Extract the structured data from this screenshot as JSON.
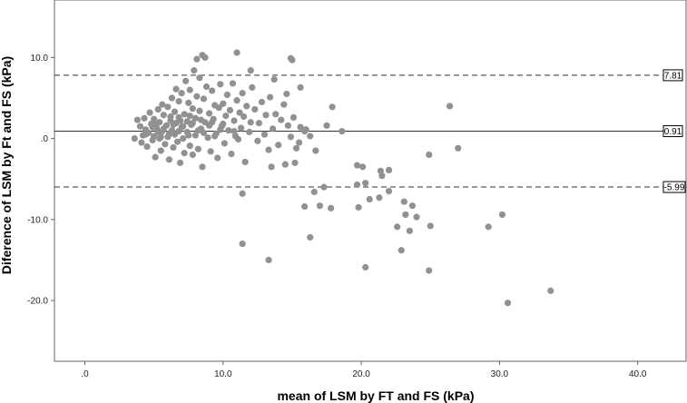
{
  "chart_data": {
    "type": "scatter",
    "title": "",
    "xlabel": "mean of LSM by FT and FS (kPa)",
    "ylabel": "Diference of LSM by Ft and FS (kPa)",
    "xlim": [
      -2.2,
      43.5
    ],
    "ylim": [
      -27.5,
      17.1
    ],
    "x_ticks": [
      0,
      10,
      20,
      30,
      40
    ],
    "x_tick_labels": [
      ".0",
      "10.0",
      "20.0",
      "30.0",
      "40.0"
    ],
    "y_ticks": [
      10,
      0,
      -10,
      -20
    ],
    "y_tick_labels": [
      "10.0",
      ".0",
      "-10.0",
      "-20.0"
    ],
    "grid": false,
    "point_color": "#919191",
    "reference_lines": [
      {
        "value": 7.81,
        "label": "7.81",
        "style": "dashed"
      },
      {
        "value": 0.91,
        "label": "0.91",
        "style": "solid"
      },
      {
        "value": -5.99,
        "label": "-5.99",
        "style": "dashed"
      }
    ],
    "points": [
      [
        3.6,
        0.0
      ],
      [
        3.8,
        2.3
      ],
      [
        4.0,
        1.5
      ],
      [
        4.1,
        -0.5
      ],
      [
        4.2,
        0.4
      ],
      [
        4.3,
        2.5
      ],
      [
        4.4,
        1.1
      ],
      [
        4.5,
        -1.0
      ],
      [
        4.6,
        0.7
      ],
      [
        4.7,
        3.2
      ],
      [
        4.8,
        1.8
      ],
      [
        4.9,
        -0.2
      ],
      [
        5.0,
        2.4
      ],
      [
        5.0,
        0.3
      ],
      [
        5.1,
        -2.3
      ],
      [
        5.2,
        1.3
      ],
      [
        5.3,
        3.6
      ],
      [
        5.4,
        0.0
      ],
      [
        5.4,
        2.0
      ],
      [
        5.5,
        -1.5
      ],
      [
        5.6,
        4.2
      ],
      [
        5.6,
        0.9
      ],
      [
        5.7,
        2.9
      ],
      [
        5.8,
        -0.7
      ],
      [
        5.9,
        1.6
      ],
      [
        6.0,
        3.9
      ],
      [
        6.0,
        0.2
      ],
      [
        6.1,
        -2.6
      ],
      [
        6.2,
        2.2
      ],
      [
        6.3,
        5.0
      ],
      [
        6.3,
        1.0
      ],
      [
        6.4,
        -1.1
      ],
      [
        6.5,
        3.3
      ],
      [
        6.5,
        0.5
      ],
      [
        6.6,
        6.1
      ],
      [
        6.6,
        1.9
      ],
      [
        6.7,
        -0.4
      ],
      [
        6.8,
        4.6
      ],
      [
        6.8,
        2.6
      ],
      [
        6.9,
        -3.0
      ],
      [
        7.0,
        1.4
      ],
      [
        7.0,
        5.6
      ],
      [
        7.1,
        0.0
      ],
      [
        7.2,
        3.0
      ],
      [
        7.2,
        -1.8
      ],
      [
        7.3,
        7.1
      ],
      [
        7.4,
        2.1
      ],
      [
        7.4,
        0.8
      ],
      [
        7.5,
        4.4
      ],
      [
        7.6,
        -0.9
      ],
      [
        7.6,
        6.0
      ],
      [
        7.7,
        1.7
      ],
      [
        7.8,
        3.7
      ],
      [
        7.8,
        -2.0
      ],
      [
        7.9,
        8.4
      ],
      [
        8.0,
        2.5
      ],
      [
        8.0,
        0.4
      ],
      [
        8.1,
        5.2
      ],
      [
        8.2,
        -1.3
      ],
      [
        8.3,
        3.4
      ],
      [
        8.3,
        7.5
      ],
      [
        8.4,
        1.2
      ],
      [
        8.5,
        -3.5
      ],
      [
        8.6,
        4.9
      ],
      [
        8.7,
        2.0
      ],
      [
        8.8,
        6.4
      ],
      [
        8.9,
        0.1
      ],
      [
        9.0,
        3.1
      ],
      [
        9.1,
        -1.6
      ],
      [
        9.2,
        5.9
      ],
      [
        9.3,
        2.4
      ],
      [
        9.4,
        4.1
      ],
      [
        9.5,
        0.6
      ],
      [
        9.6,
        -2.4
      ],
      [
        9.7,
        3.8
      ],
      [
        9.8,
        6.7
      ],
      [
        9.9,
        1.5
      ],
      [
        10.0,
        4.3
      ],
      [
        10.1,
        -0.6
      ],
      [
        10.2,
        2.8
      ],
      [
        10.3,
        5.4
      ],
      [
        10.4,
        1.0
      ],
      [
        10.5,
        3.5
      ],
      [
        10.6,
        -1.9
      ],
      [
        10.7,
        6.8
      ],
      [
        10.8,
        2.2
      ],
      [
        10.9,
        0.3
      ],
      [
        11.0,
        4.7
      ],
      [
        11.1,
        -0.1
      ],
      [
        11.2,
        3.2
      ],
      [
        11.3,
        1.3
      ],
      [
        11.4,
        5.6
      ],
      [
        11.5,
        2.7
      ],
      [
        11.6,
        -2.9
      ],
      [
        11.7,
        4.0
      ],
      [
        11.9,
        0.8
      ],
      [
        12.0,
        2.0
      ],
      [
        12.1,
        6.3
      ],
      [
        12.3,
        3.6
      ],
      [
        12.5,
        -0.3
      ],
      [
        12.6,
        1.9
      ],
      [
        12.8,
        4.5
      ],
      [
        13.0,
        0.5
      ],
      [
        13.1,
        2.9
      ],
      [
        13.3,
        -1.4
      ],
      [
        13.4,
        5.1
      ],
      [
        13.6,
        1.2
      ],
      [
        13.8,
        3.0
      ],
      [
        14.0,
        -0.8
      ],
      [
        14.2,
        2.3
      ],
      [
        14.4,
        4.2
      ],
      [
        14.5,
        -3.2
      ],
      [
        14.7,
        1.6
      ],
      [
        14.9,
        0.2
      ],
      [
        15.1,
        2.6
      ],
      [
        15.3,
        -1.2
      ],
      [
        15.6,
        1.4
      ],
      [
        15.9,
        0.9
      ],
      [
        4.4,
        0.5
      ],
      [
        4.9,
        1.4
      ],
      [
        5.3,
        0.8
      ],
      [
        5.7,
        1.2
      ],
      [
        6.1,
        0.6
      ],
      [
        6.4,
        1.7
      ],
      [
        6.8,
        0.9
      ],
      [
        7.1,
        1.5
      ],
      [
        7.5,
        0.4
      ],
      [
        7.8,
        1.9
      ],
      [
        8.2,
        1.0
      ],
      [
        8.6,
        0.7
      ],
      [
        9.0,
        1.6
      ],
      [
        9.4,
        0.3
      ],
      [
        9.8,
        1.1
      ],
      [
        5.0,
        1.8
      ],
      [
        5.5,
        0.2
      ],
      [
        6.2,
        2.7
      ],
      [
        6.9,
        2.2
      ],
      [
        7.6,
        2.8
      ],
      [
        8.4,
        2.3
      ],
      [
        9.2,
        2.0
      ],
      [
        10.0,
        1.8
      ],
      [
        10.8,
        0.9
      ],
      [
        8.1,
        9.8
      ],
      [
        8.5,
        10.3
      ],
      [
        8.7,
        10.0
      ],
      [
        11.0,
        10.6
      ],
      [
        14.9,
        9.9
      ],
      [
        15.0,
        9.7
      ],
      [
        12.0,
        8.4
      ],
      [
        13.7,
        7.3
      ],
      [
        11.4,
        -6.8
      ],
      [
        11.4,
        -13.0
      ],
      [
        13.3,
        -15.0
      ],
      [
        15.2,
        -3.0
      ],
      [
        15.9,
        -8.4
      ],
      [
        16.3,
        -12.2
      ],
      [
        16.6,
        -6.6
      ],
      [
        17.0,
        -8.3
      ],
      [
        17.3,
        -6.0
      ],
      [
        17.8,
        -8.6
      ],
      [
        19.7,
        -5.7
      ],
      [
        19.8,
        -8.5
      ],
      [
        20.3,
        -5.5
      ],
      [
        20.3,
        -15.9
      ],
      [
        20.6,
        -7.5
      ],
      [
        21.3,
        -7.3
      ],
      [
        21.5,
        -4.6
      ],
      [
        22.0,
        -6.5
      ],
      [
        22.6,
        -10.9
      ],
      [
        22.9,
        -13.8
      ],
      [
        23.1,
        -7.8
      ],
      [
        23.2,
        -9.4
      ],
      [
        23.5,
        -11.4
      ],
      [
        23.7,
        -8.3
      ],
      [
        24.0,
        -9.7
      ],
      [
        24.9,
        -16.3
      ],
      [
        25.0,
        -10.8
      ],
      [
        24.9,
        -2.0
      ],
      [
        22.0,
        -3.9
      ],
      [
        21.4,
        -4.0
      ],
      [
        20.1,
        -3.5
      ],
      [
        19.7,
        -3.3
      ],
      [
        29.2,
        -10.9
      ],
      [
        30.2,
        -9.4
      ],
      [
        30.6,
        -20.3
      ],
      [
        33.7,
        -18.8
      ],
      [
        26.4,
        4.0
      ],
      [
        27.0,
        -1.2
      ],
      [
        17.5,
        1.6
      ],
      [
        17.9,
        3.9
      ],
      [
        18.6,
        0.9
      ],
      [
        16.7,
        -1.5
      ],
      [
        16.3,
        0.3
      ],
      [
        15.6,
        6.3
      ],
      [
        14.6,
        5.5
      ],
      [
        15.5,
        -0.5
      ],
      [
        16.0,
        1.1
      ],
      [
        13.5,
        -3.5
      ]
    ]
  }
}
